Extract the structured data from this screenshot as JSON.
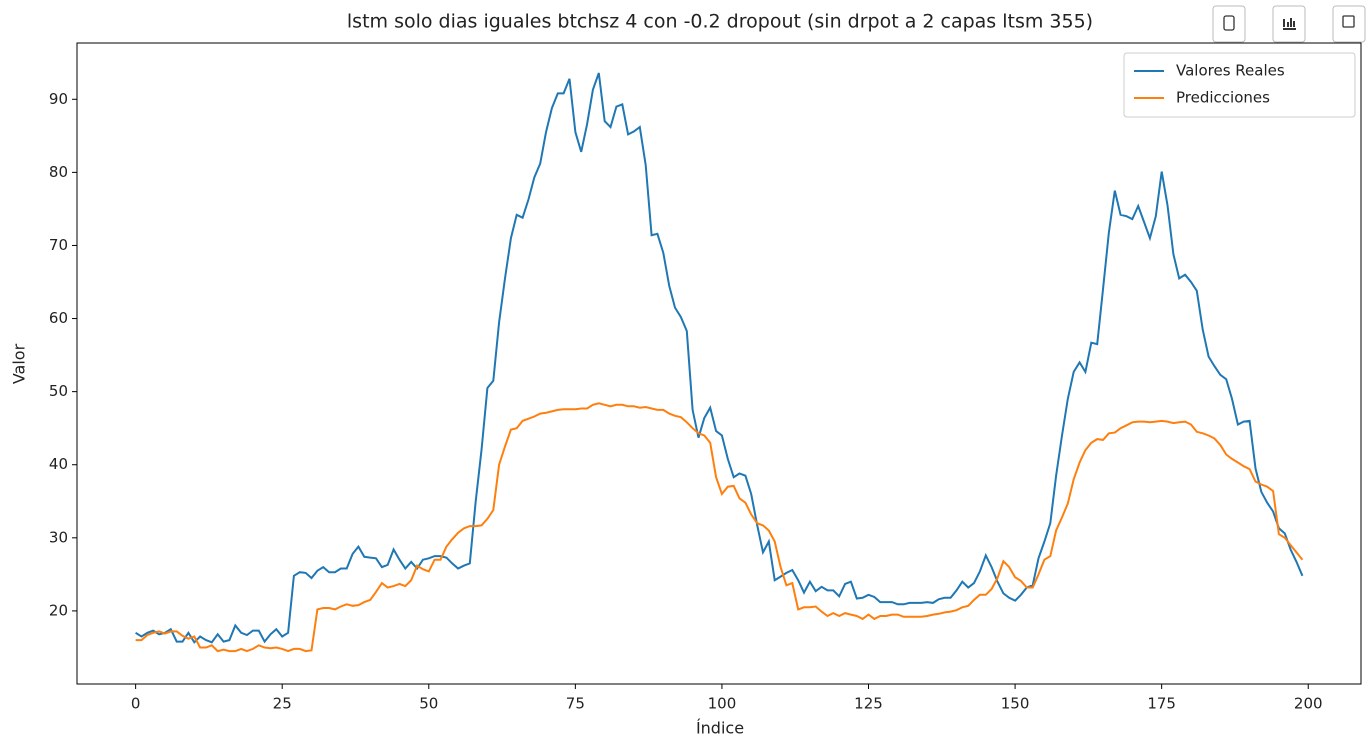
{
  "chart_data": {
    "type": "line",
    "title": "lstm solo dias iguales btchsz 4 con -0.2 dropout (sin drpot a 2 capas ltsm 355)",
    "xlabel": "Índice",
    "ylabel": "Valor",
    "x": [
      0,
      1,
      2,
      3,
      4,
      5,
      6,
      7,
      8,
      9,
      10,
      11,
      12,
      13,
      14,
      15,
      16,
      17,
      18,
      19,
      20,
      21,
      22,
      23,
      24,
      25,
      26,
      27,
      28,
      29,
      30,
      31,
      32,
      33,
      34,
      35,
      36,
      37,
      38,
      39,
      40,
      41,
      42,
      43,
      44,
      45,
      46,
      47,
      48,
      49,
      50,
      51,
      52,
      53,
      54,
      55,
      56,
      57,
      58,
      59,
      60,
      61,
      62,
      63,
      64,
      65,
      66,
      67,
      68,
      69,
      70,
      71,
      72,
      73,
      74,
      75,
      76,
      77,
      78,
      79,
      80,
      81,
      82,
      83,
      84,
      85,
      86,
      87,
      88,
      89,
      90,
      91,
      92,
      93,
      94,
      95,
      96,
      97,
      98,
      99,
      100,
      101,
      102,
      103,
      104,
      105,
      106,
      107,
      108,
      109,
      110,
      111,
      112,
      113,
      114,
      115,
      116,
      117,
      118,
      119,
      120,
      121,
      122,
      123,
      124,
      125,
      126,
      127,
      128,
      129,
      130,
      131,
      132,
      133,
      134,
      135,
      136,
      137,
      138,
      139,
      140,
      141,
      142,
      143,
      144,
      145,
      146,
      147,
      148,
      149,
      150,
      151,
      152,
      153,
      154,
      155,
      156,
      157,
      158,
      159,
      160,
      161,
      162,
      163,
      164,
      165,
      166,
      167,
      168,
      169,
      170,
      171,
      172,
      173,
      174,
      175,
      176,
      177,
      178,
      179,
      180,
      181,
      182,
      183,
      184,
      185,
      186,
      187,
      188,
      189,
      190,
      191,
      192,
      193,
      194,
      195,
      196,
      197,
      198,
      199
    ],
    "series": [
      {
        "name": "Valores Reales",
        "color": "#1f77b4",
        "values": [
          17,
          16.5,
          17,
          17.3,
          16.8,
          17,
          17.5,
          15.8,
          15.8,
          17,
          15.7,
          16.5,
          16,
          15.7,
          16.8,
          15.8,
          16,
          18,
          17,
          16.7,
          17.3,
          17.3,
          15.8,
          16.8,
          17.5,
          16.5,
          17,
          24.8,
          25.3,
          25.2,
          24.5,
          25.5,
          26,
          25.3,
          25.3,
          25.8,
          25.8,
          27.8,
          28.8,
          27.4,
          27.3,
          27.2,
          26,
          26.3,
          28.4,
          27,
          25.8,
          26.7,
          25.8,
          27,
          27.2,
          27.5,
          27.5,
          27.3,
          26.5,
          25.8,
          26.2,
          26.5,
          35,
          42,
          50.5,
          51.5,
          59.5,
          65.5,
          71,
          74.2,
          73.8,
          76.3,
          79.3,
          81.2,
          85.5,
          88.8,
          90.8,
          90.8,
          92.8,
          85.5,
          82.8,
          86.6,
          91.3,
          93.6,
          87,
          86.2,
          89,
          89.3,
          85.2,
          85.6,
          86.2,
          81,
          71.4,
          71.6,
          69,
          64.5,
          61.5,
          60.2,
          58.3,
          47.5,
          43.7,
          46.4,
          47.8,
          44.6,
          44,
          40.8,
          38.3,
          38.8,
          38.5,
          36,
          31.8,
          28,
          29.5,
          24.2,
          24.7,
          25.2,
          25.6,
          24.2,
          22.5,
          24,
          22.7,
          23.3,
          22.8,
          22.8,
          22,
          23.7,
          24,
          21.7,
          21.8,
          22.2,
          21.9,
          21.2,
          21.2,
          21.2,
          20.9,
          20.9,
          21.1,
          21.1,
          21.1,
          21.2,
          21.1,
          21.6,
          21.8,
          21.8,
          22.8,
          24,
          23.2,
          23.8,
          25.4,
          27.6,
          26,
          24,
          22.4,
          21.8,
          21.4,
          22.2,
          23.2,
          23.5,
          27.2,
          29.5,
          32,
          38.5,
          44,
          49,
          52.7,
          54,
          52.7,
          56.7,
          56.5,
          64,
          71.8,
          77.5,
          74.2,
          74,
          73.6,
          75.4,
          73.2,
          71,
          74,
          80.1,
          75.5,
          68.8,
          65.5,
          66,
          65,
          63.8,
          58.5,
          54.8,
          53.5,
          52.3,
          51.7,
          49,
          45.5,
          45.9,
          46,
          39.5,
          36.3,
          34.8,
          33.6,
          31.3,
          30.6,
          28.4,
          26.7,
          24.8
        ]
      },
      {
        "name": "Predicciones",
        "color": "#ff7f0e",
        "values": [
          16,
          16,
          16.7,
          17,
          17.2,
          16.9,
          17.2,
          17.2,
          16.6,
          16.2,
          16.5,
          15,
          15,
          15.3,
          14.5,
          14.7,
          14.5,
          14.5,
          14.8,
          14.5,
          14.8,
          15.3,
          15,
          14.9,
          15,
          14.8,
          14.5,
          14.8,
          14.8,
          14.5,
          14.6,
          20.2,
          20.4,
          20.4,
          20.2,
          20.6,
          20.9,
          20.7,
          20.8,
          21.2,
          21.5,
          22.6,
          23.8,
          23.2,
          23.4,
          23.7,
          23.4,
          24.2,
          26.2,
          25.7,
          25.4,
          27,
          27,
          28.8,
          29.8,
          30.7,
          31.3,
          31.6,
          31.6,
          31.7,
          32.6,
          33.8,
          40,
          42.5,
          44.8,
          45,
          46,
          46.3,
          46.6,
          47,
          47.1,
          47.3,
          47.5,
          47.6,
          47.6,
          47.6,
          47.7,
          47.7,
          48.2,
          48.4,
          48.2,
          48,
          48.2,
          48.2,
          48,
          48,
          47.8,
          47.9,
          47.7,
          47.5,
          47.5,
          47,
          46.7,
          46.5,
          45.8,
          45,
          44.3,
          44,
          43,
          38.3,
          36,
          37,
          37.1,
          35.4,
          34.8,
          33.2,
          32,
          31.7,
          31,
          29.5,
          26,
          23.5,
          23.8,
          20.2,
          20.5,
          20.5,
          20.6,
          19.9,
          19.3,
          19.7,
          19.3,
          19.7,
          19.5,
          19.3,
          18.9,
          19.5,
          18.9,
          19.3,
          19.3,
          19.5,
          19.5,
          19.2,
          19.2,
          19.2,
          19.2,
          19.3,
          19.5,
          19.6,
          19.8,
          19.9,
          20.1,
          20.5,
          20.7,
          21.5,
          22.2,
          22.2,
          23,
          24.5,
          26.8,
          26,
          24.6,
          24.1,
          23.2,
          23.2,
          25,
          27,
          27.5,
          31,
          32.8,
          34.7,
          38,
          40.3,
          42,
          43,
          43.5,
          43.4,
          44.3,
          44.4,
          45,
          45.4,
          45.8,
          45.9,
          45.9,
          45.8,
          45.9,
          46,
          45.9,
          45.7,
          45.8,
          45.9,
          45.5,
          44.5,
          44.3,
          44,
          43.6,
          42.7,
          41.4,
          40.8,
          40.3,
          39.8,
          39.4,
          37.7,
          37.3,
          37,
          36.4,
          30.5,
          30,
          29,
          28,
          27
        ]
      }
    ],
    "xlim": [
      -10,
      209
    ],
    "ylim": [
      10,
      97.7
    ],
    "xticks": [
      0,
      25,
      50,
      75,
      100,
      125,
      150,
      175,
      200
    ],
    "yticks": [
      20,
      30,
      40,
      50,
      60,
      70,
      80,
      90
    ],
    "legend": "upper right"
  }
}
